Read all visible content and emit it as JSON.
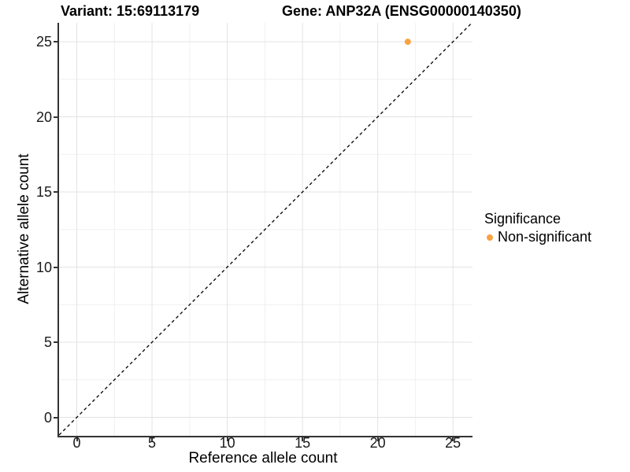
{
  "chart_data": {
    "type": "scatter",
    "title_left": "Variant: 15:69113179",
    "title_right": "Gene: ANP32A (ENSG00000140350)",
    "xlabel": "Reference allele count",
    "ylabel": "Alternative allele count",
    "xlim": [
      -1.18,
      26.3
    ],
    "ylim": [
      -1.23,
      26.26
    ],
    "x_ticks": [
      0,
      5,
      10,
      15,
      20,
      25
    ],
    "y_ticks": [
      0,
      5,
      10,
      15,
      20,
      25
    ],
    "x_minor_ticks": [
      2.5,
      7.5,
      12.5,
      17.5,
      22.5
    ],
    "y_minor_ticks": [
      2.5,
      7.5,
      12.5,
      17.5,
      22.5
    ],
    "grid": "major+minor",
    "identity_line": {
      "type": "y=x",
      "style": "dashed",
      "color": "#000000"
    },
    "series": [
      {
        "name": "Non-significant",
        "color": "#F9A242",
        "points": [
          {
            "x": 22,
            "y": 25
          }
        ]
      }
    ],
    "legend": {
      "title": "Significance",
      "position": "right",
      "items": [
        {
          "label": "Non-significant",
          "color": "#F9A242"
        }
      ]
    },
    "colors": {
      "grid_major": "#E3E3E3",
      "grid_minor": "#F0F0F0",
      "axis": "#333333",
      "text": "#000000"
    }
  }
}
